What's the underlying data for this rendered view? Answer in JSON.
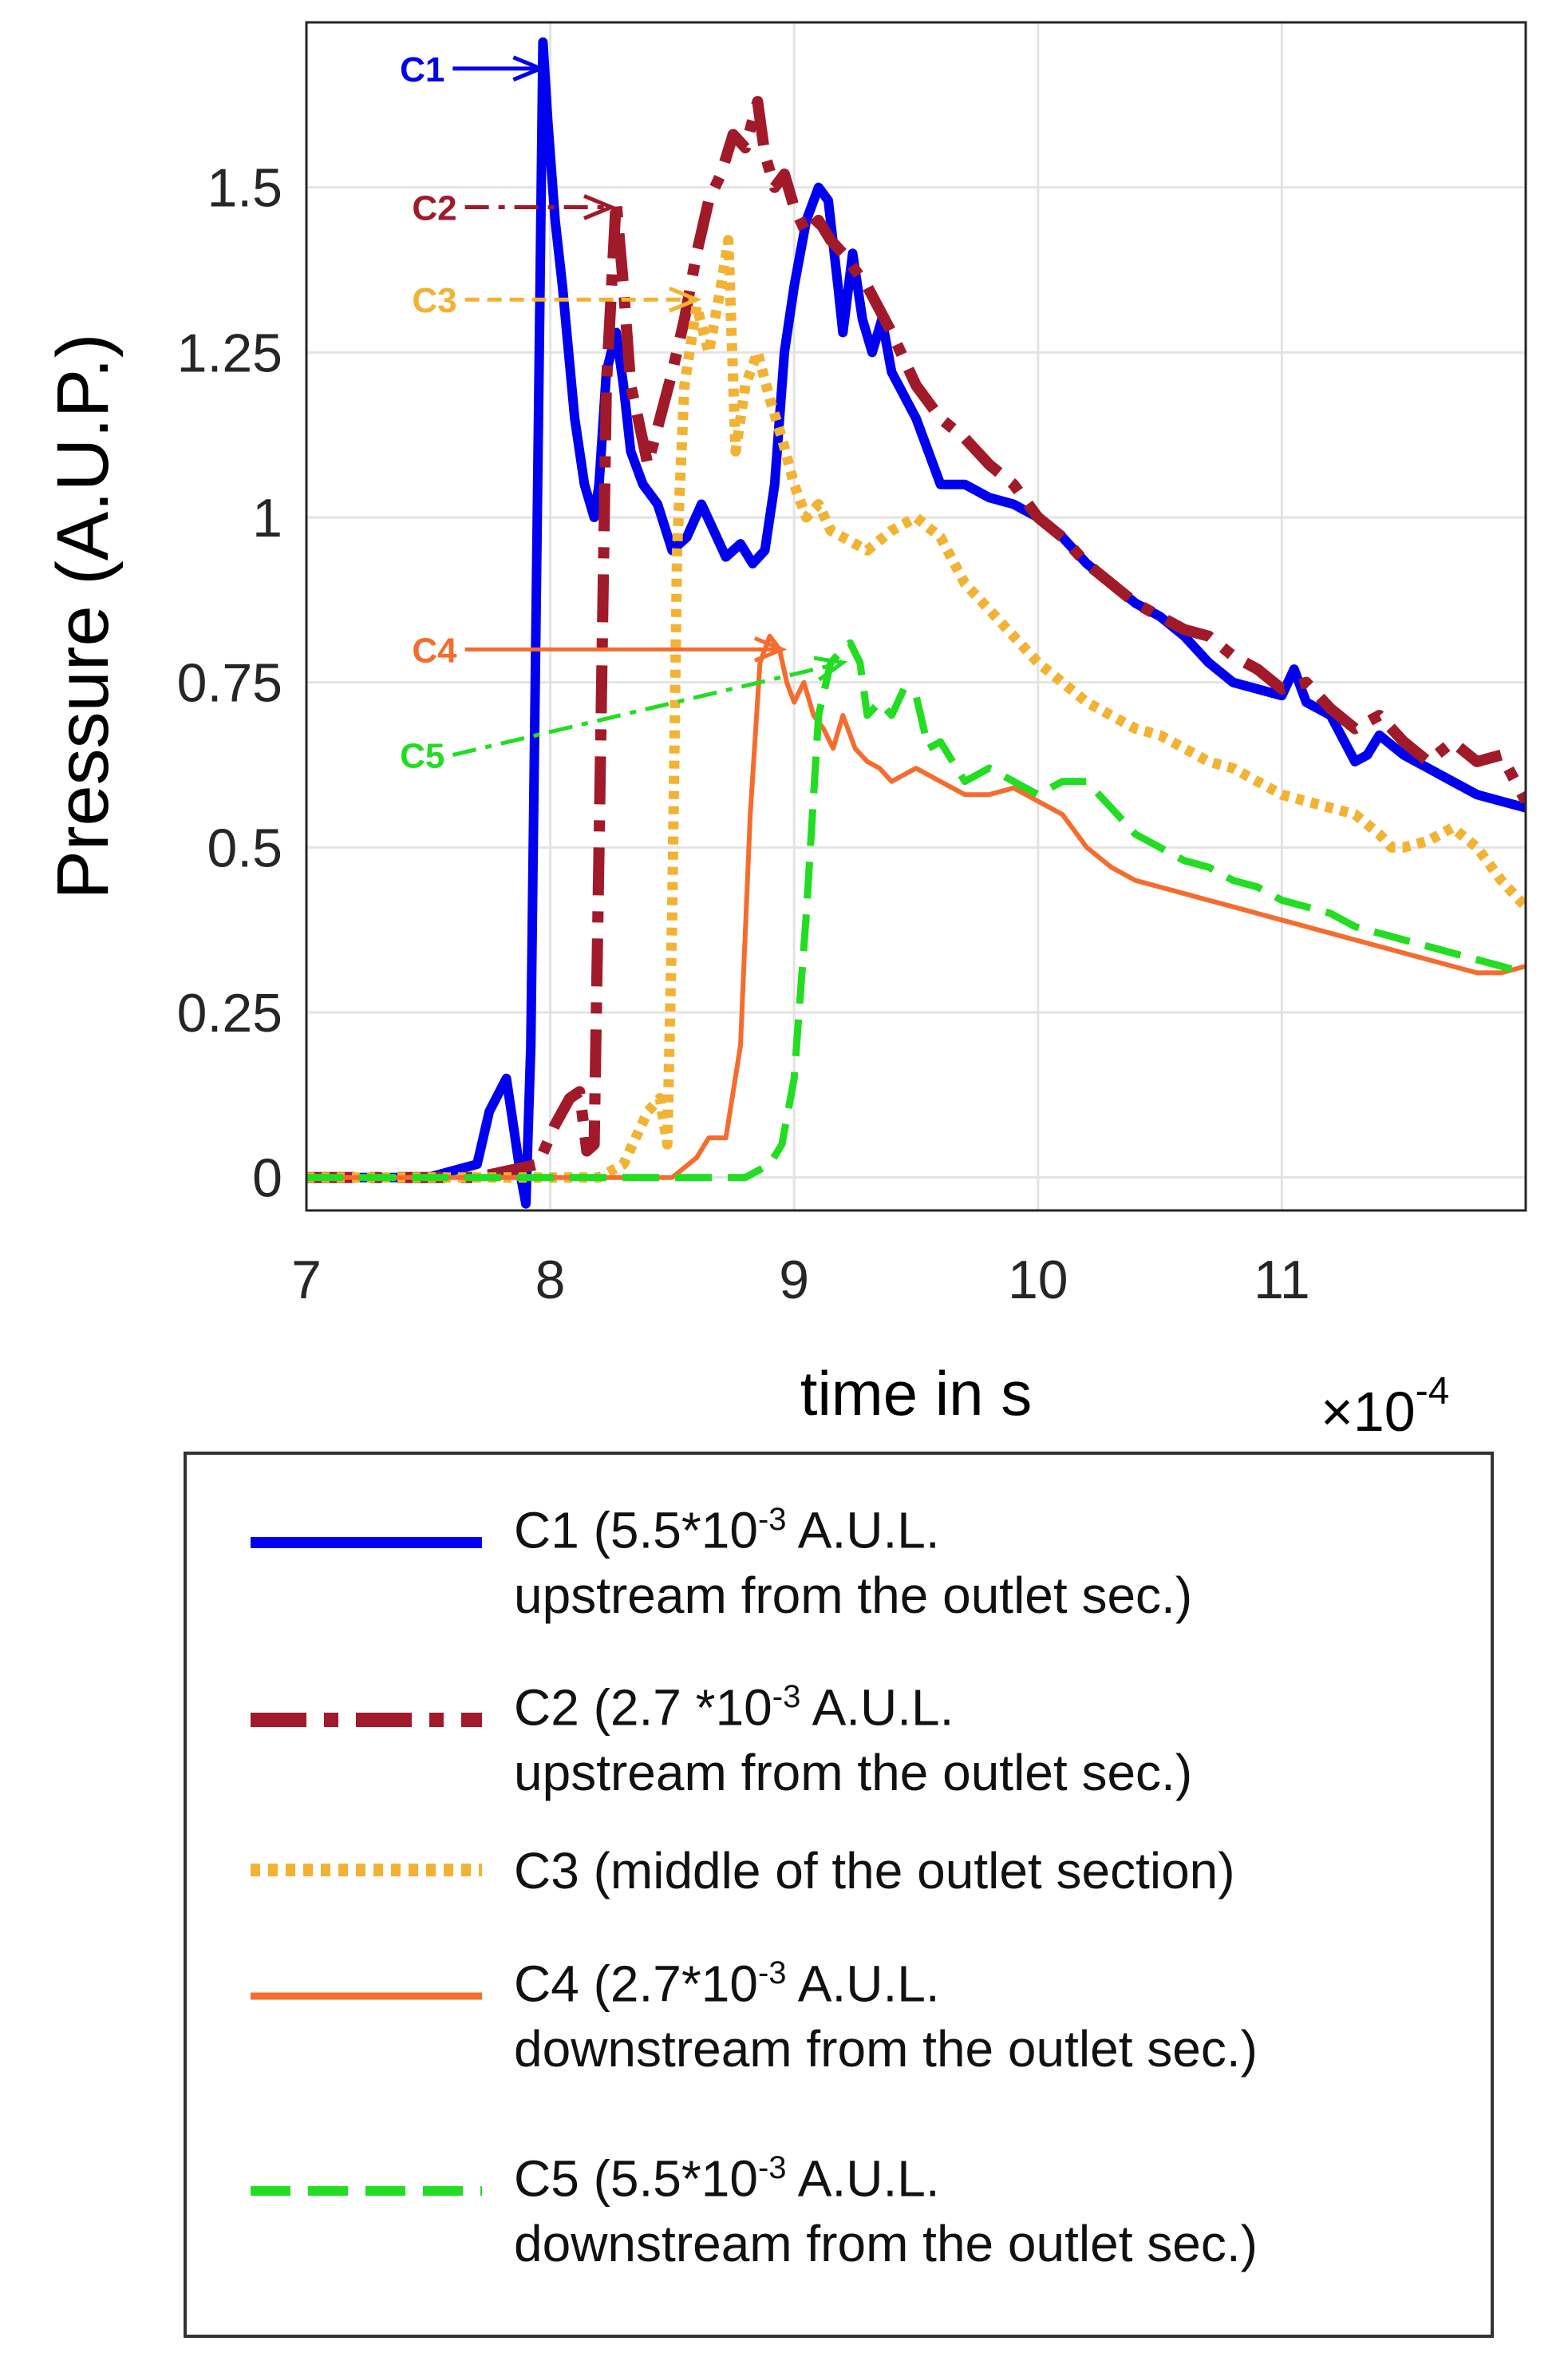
{
  "chart_data": {
    "type": "line",
    "title": "",
    "xlabel": "time in s",
    "ylabel": "Pressure (A.U.P.)",
    "x_multiplier": "×10",
    "x_multiplier_exp": "-4",
    "xlim": [
      7,
      12
    ],
    "ylim": [
      -0.05,
      1.75
    ],
    "xticks": [
      7,
      8,
      9,
      10,
      11
    ],
    "xtick_labels": [
      "7",
      "8",
      "9",
      "10",
      "11"
    ],
    "yticks": [
      0,
      0.25,
      0.5,
      0.75,
      1,
      1.25,
      1.5
    ],
    "ytick_labels": [
      "0",
      "0.25",
      "0.5",
      "0.75",
      "1",
      "1.25",
      "1.5"
    ],
    "grid": true,
    "legend_position": "below",
    "series": [
      {
        "name": "C1",
        "label_line1": "C1 (5.5*10",
        "label_exp": "-3",
        "label_line1_tail": " A.U.L.",
        "label_line2": "upstream from the outlet sec.)",
        "color": "#0000ee",
        "dash": "solid",
        "width": 12,
        "x": [
          7.0,
          7.5,
          7.7,
          7.75,
          7.82,
          7.88,
          7.9,
          7.92,
          7.95,
          7.97,
          7.99,
          8.02,
          8.05,
          8.1,
          8.14,
          8.18,
          8.2,
          8.23,
          8.27,
          8.3,
          8.33,
          8.38,
          8.44,
          8.5,
          8.56,
          8.62,
          8.67,
          8.72,
          8.78,
          8.83,
          8.88,
          8.92,
          8.96,
          9.0,
          9.05,
          9.1,
          9.14,
          9.18,
          9.2,
          9.24,
          9.28,
          9.32,
          9.36,
          9.4,
          9.5,
          9.6,
          9.7,
          9.8,
          9.9,
          10.0,
          10.1,
          10.2,
          10.3,
          10.4,
          10.5,
          10.6,
          10.7,
          10.8,
          10.9,
          11.0,
          11.05,
          11.1,
          11.2,
          11.3,
          11.35,
          11.4,
          11.5,
          11.6,
          11.7,
          11.8,
          11.9,
          12.0
        ],
        "y": [
          0.0,
          0.0,
          0.02,
          0.1,
          0.15,
          0.0,
          -0.04,
          0.2,
          1.1,
          1.72,
          1.6,
          1.45,
          1.35,
          1.15,
          1.05,
          1.0,
          1.05,
          1.22,
          1.28,
          1.2,
          1.1,
          1.05,
          1.02,
          0.95,
          0.97,
          1.02,
          0.98,
          0.94,
          0.96,
          0.93,
          0.95,
          1.05,
          1.25,
          1.35,
          1.45,
          1.5,
          1.48,
          1.35,
          1.28,
          1.4,
          1.3,
          1.25,
          1.3,
          1.22,
          1.15,
          1.05,
          1.05,
          1.03,
          1.02,
          1.0,
          0.97,
          0.93,
          0.9,
          0.87,
          0.85,
          0.82,
          0.78,
          0.75,
          0.74,
          0.73,
          0.77,
          0.72,
          0.7,
          0.63,
          0.64,
          0.67,
          0.64,
          0.62,
          0.6,
          0.58,
          0.57,
          0.56
        ]
      },
      {
        "name": "C2",
        "label_line1": "C2 (2.7 *10",
        "label_exp": "-3",
        "label_line1_tail": " A.U.L.",
        "label_line2": "upstream from the outlet sec.)",
        "color": "#a01a2a",
        "dash": "dashdot",
        "width": 14,
        "x": [
          7.0,
          7.7,
          7.95,
          8.02,
          8.08,
          8.12,
          8.15,
          8.18,
          8.2,
          8.23,
          8.27,
          8.3,
          8.33,
          8.36,
          8.4,
          8.45,
          8.5,
          8.55,
          8.6,
          8.65,
          8.7,
          8.75,
          8.8,
          8.85,
          8.88,
          8.92,
          8.96,
          9.0,
          9.05,
          9.1,
          9.15,
          9.2,
          9.3,
          9.4,
          9.5,
          9.6,
          9.7,
          9.8,
          9.9,
          10.0,
          10.1,
          10.2,
          10.3,
          10.4,
          10.5,
          10.6,
          10.7,
          10.8,
          10.9,
          11.0,
          11.1,
          11.2,
          11.3,
          11.4,
          11.5,
          11.6,
          11.7,
          11.8,
          11.9,
          12.0
        ],
        "y": [
          0.0,
          0.0,
          0.02,
          0.08,
          0.12,
          0.13,
          0.04,
          0.05,
          0.5,
          1.2,
          1.48,
          1.35,
          1.2,
          1.15,
          1.08,
          1.15,
          1.22,
          1.3,
          1.4,
          1.48,
          1.52,
          1.58,
          1.56,
          1.63,
          1.55,
          1.5,
          1.52,
          1.47,
          1.43,
          1.45,
          1.42,
          1.4,
          1.35,
          1.28,
          1.2,
          1.15,
          1.12,
          1.08,
          1.05,
          1.0,
          0.97,
          0.93,
          0.9,
          0.87,
          0.85,
          0.83,
          0.82,
          0.79,
          0.77,
          0.74,
          0.75,
          0.71,
          0.68,
          0.7,
          0.66,
          0.63,
          0.66,
          0.63,
          0.64,
          0.57
        ]
      },
      {
        "name": "C3",
        "label_line1": "C3 (middle of the outlet section)",
        "label_exp": "",
        "label_line1_tail": "",
        "label_line2": "",
        "color": "#f2b233",
        "dash": "dotted",
        "width": 13,
        "x": [
          7.0,
          8.2,
          8.3,
          8.35,
          8.4,
          8.45,
          8.48,
          8.5,
          8.52,
          8.55,
          8.6,
          8.65,
          8.7,
          8.73,
          8.76,
          8.8,
          8.85,
          8.9,
          8.95,
          9.0,
          9.05,
          9.1,
          9.15,
          9.2,
          9.3,
          9.4,
          9.5,
          9.6,
          9.7,
          9.8,
          9.9,
          10.0,
          10.1,
          10.2,
          10.3,
          10.4,
          10.5,
          10.6,
          10.7,
          10.8,
          10.9,
          11.0,
          11.1,
          11.2,
          11.3,
          11.4,
          11.45,
          11.5,
          11.6,
          11.7,
          11.8,
          11.9,
          12.0
        ],
        "y": [
          0.0,
          0.0,
          0.02,
          0.06,
          0.1,
          0.12,
          0.05,
          0.4,
          0.95,
          1.2,
          1.32,
          1.25,
          1.35,
          1.42,
          1.1,
          1.2,
          1.25,
          1.18,
          1.12,
          1.05,
          1.0,
          1.02,
          0.98,
          0.97,
          0.95,
          0.98,
          1.0,
          0.97,
          0.9,
          0.86,
          0.82,
          0.78,
          0.75,
          0.72,
          0.7,
          0.68,
          0.67,
          0.65,
          0.63,
          0.62,
          0.6,
          0.58,
          0.57,
          0.56,
          0.55,
          0.52,
          0.5,
          0.5,
          0.51,
          0.53,
          0.5,
          0.45,
          0.41
        ]
      },
      {
        "name": "C4",
        "label_line1": "C4 (2.7*10",
        "label_exp": "-3",
        "label_line1_tail": " A.U.L.",
        "label_line2": "downstream from the outlet sec.)",
        "color": "#f46d2e",
        "dash": "solid",
        "width": 6,
        "x": [
          7.0,
          8.5,
          8.6,
          8.65,
          8.72,
          8.78,
          8.82,
          8.86,
          8.9,
          8.94,
          8.97,
          9.0,
          9.04,
          9.08,
          9.12,
          9.16,
          9.2,
          9.25,
          9.3,
          9.35,
          9.4,
          9.5,
          9.6,
          9.7,
          9.8,
          9.9,
          10.0,
          10.1,
          10.2,
          10.3,
          10.4,
          10.5,
          10.6,
          10.7,
          10.8,
          10.9,
          11.0,
          11.1,
          11.2,
          11.3,
          11.4,
          11.5,
          11.6,
          11.7,
          11.8,
          11.9,
          12.0
        ],
        "y": [
          0.0,
          0.0,
          0.03,
          0.06,
          0.06,
          0.2,
          0.55,
          0.78,
          0.82,
          0.8,
          0.75,
          0.72,
          0.75,
          0.7,
          0.68,
          0.65,
          0.7,
          0.65,
          0.63,
          0.62,
          0.6,
          0.62,
          0.6,
          0.58,
          0.58,
          0.59,
          0.57,
          0.55,
          0.5,
          0.47,
          0.45,
          0.44,
          0.43,
          0.42,
          0.41,
          0.4,
          0.39,
          0.38,
          0.37,
          0.36,
          0.35,
          0.34,
          0.33,
          0.32,
          0.31,
          0.31,
          0.32
        ]
      },
      {
        "name": "C5",
        "label_line1": "C5 (5.5*10",
        "label_exp": "-3",
        "label_line1_tail": " A.U.L.",
        "label_line2": "downstream from the outlet sec.)",
        "color": "#22dd22",
        "dash": "dashed",
        "width": 9,
        "x": [
          7.0,
          8.8,
          8.9,
          8.95,
          9.0,
          9.05,
          9.1,
          9.15,
          9.2,
          9.23,
          9.27,
          9.3,
          9.35,
          9.4,
          9.45,
          9.5,
          9.55,
          9.6,
          9.7,
          9.8,
          9.9,
          10.0,
          10.1,
          10.2,
          10.3,
          10.4,
          10.5,
          10.6,
          10.7,
          10.8,
          10.9,
          11.0,
          11.1,
          11.2,
          11.3,
          11.4,
          11.5,
          11.6,
          11.7,
          11.8,
          11.9,
          12.0
        ],
        "y": [
          0.0,
          0.0,
          0.02,
          0.05,
          0.15,
          0.4,
          0.7,
          0.78,
          0.8,
          0.81,
          0.78,
          0.7,
          0.72,
          0.7,
          0.74,
          0.73,
          0.65,
          0.66,
          0.6,
          0.62,
          0.6,
          0.58,
          0.6,
          0.6,
          0.56,
          0.52,
          0.5,
          0.48,
          0.47,
          0.45,
          0.44,
          0.42,
          0.41,
          0.4,
          0.38,
          0.37,
          0.36,
          0.35,
          0.34,
          0.33,
          0.32,
          0.31
        ]
      }
    ],
    "annotations": [
      {
        "label": "C1",
        "color": "#0000ee",
        "dash": "solid",
        "from": [
          7.6,
          1.68
        ],
        "to": [
          7.96,
          1.68
        ]
      },
      {
        "label": "C2",
        "color": "#a01a2a",
        "dash": "dashdot",
        "from": [
          7.65,
          1.47
        ],
        "to": [
          8.25,
          1.47
        ]
      },
      {
        "label": "C3",
        "color": "#f2b233",
        "dash": "dashed",
        "from": [
          7.65,
          1.33
        ],
        "to": [
          8.6,
          1.33
        ]
      },
      {
        "label": "C4",
        "color": "#f46d2e",
        "dash": "solid",
        "from": [
          7.65,
          0.8
        ],
        "to": [
          8.95,
          0.8
        ]
      },
      {
        "label": "C5",
        "color": "#22dd22",
        "dash": "dashdot",
        "from": [
          7.6,
          0.64
        ],
        "to": [
          9.2,
          0.78
        ]
      }
    ]
  }
}
